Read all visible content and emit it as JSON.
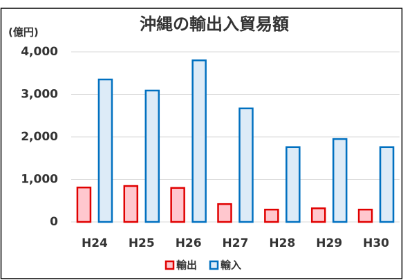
{
  "chart_data": {
    "type": "bar",
    "title": "沖縄の輸出入貿易額",
    "y_label": "(億円)",
    "categories": [
      "H24",
      "H25",
      "H26",
      "H27",
      "H28",
      "H29",
      "H30"
    ],
    "series": [
      {
        "name": "輸出",
        "color": "#e00000",
        "fill": "#ffc7ce",
        "values": [
          810,
          845,
          800,
          420,
          290,
          320,
          290
        ]
      },
      {
        "name": "輸入",
        "color": "#0070c0",
        "fill": "#ddebf7",
        "values": [
          3350,
          3090,
          3800,
          2670,
          1760,
          1950,
          1760
        ]
      }
    ],
    "ylim": [
      0,
      4000
    ],
    "yticks": [
      0,
      {
        "value": 1000,
        "label": "1,000"
      },
      {
        "value": 2000,
        "label": "2,000"
      },
      {
        "value": 3000,
        "label": "3,000"
      },
      {
        "value": 4000,
        "label": "4,000"
      }
    ],
    "grid": true,
    "legend": "bottom"
  }
}
